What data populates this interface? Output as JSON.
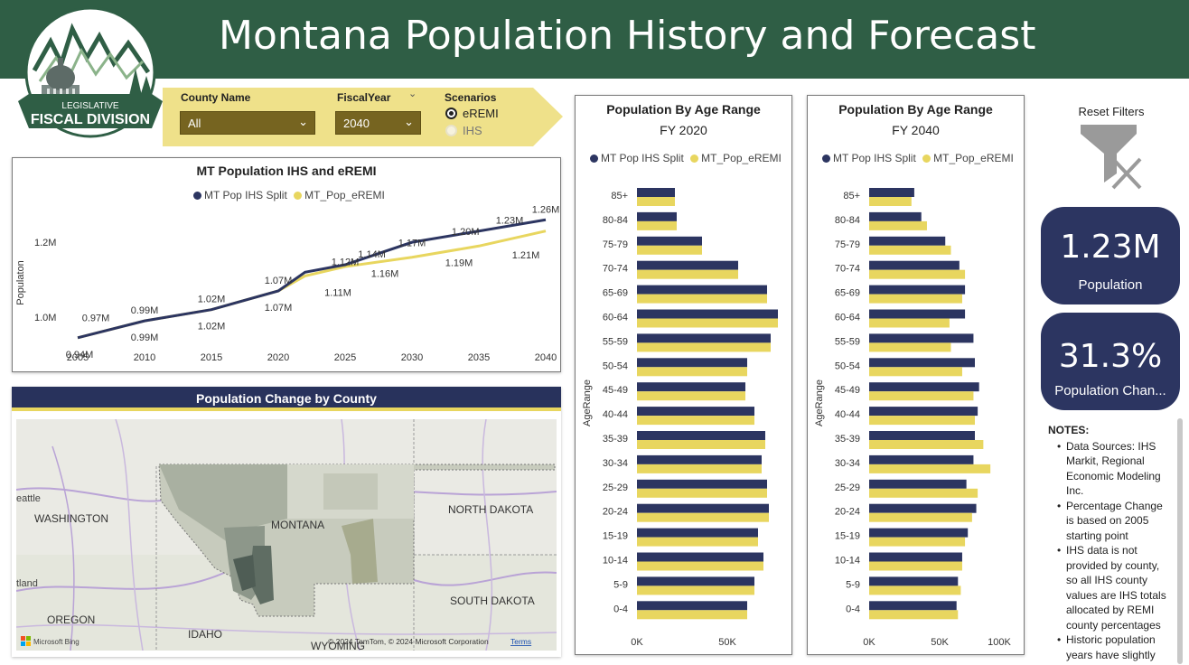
{
  "header": {
    "title": "Montana Population History and Forecast",
    "logo_top": "LEGISLATIVE",
    "logo_bottom": "FISCAL DIVISION"
  },
  "filters": {
    "county_label": "County Name",
    "county_value": "All",
    "year_label": "FiscalYear",
    "year_value": "2040",
    "scenarios_label": "Scenarios",
    "scenarios": [
      {
        "label": "eREMI",
        "selected": true
      },
      {
        "label": "IHS",
        "selected": false
      }
    ]
  },
  "colors": {
    "ihs": "#2c3561",
    "eremi": "#e8d65f",
    "header_bg": "#2f5e45",
    "kpi_bg": "#2c3561"
  },
  "line_chart": {
    "title": "MT Population IHS and eREMI",
    "legend": [
      "MT Pop IHS Split",
      "MT_Pop_eREMI"
    ],
    "ylabel": "Populaton",
    "y_ticks": [
      "1.2M",
      "1.0M"
    ],
    "x_ticks": [
      "2005",
      "2010",
      "2015",
      "2020",
      "2025",
      "2030",
      "2035",
      "2040"
    ],
    "above_labels": [
      "0.97M",
      "0.99M",
      "1.02M",
      "1.07M",
      "1.12M",
      "1.14M",
      "1.17M",
      "1.20M",
      "1.23M",
      "1.26M"
    ],
    "below_labels": [
      "0.94M",
      "0.99M",
      "1.02M",
      "1.07M",
      "1.11M",
      "1.16M",
      "1.19M",
      "1.21M"
    ]
  },
  "map": {
    "title": "Population Change by County",
    "labels": [
      "eattle",
      "WASHINGTON",
      "MONTANA",
      "NORTH DAKOTA",
      "SOUTH DAKOTA",
      "tland",
      "OREGON",
      "IDAHO",
      "WYOMING"
    ],
    "attribution": "© 2024 TomTom, © 2024 Microsoft Corporation",
    "terms": "Terms",
    "bing": "Microsoft Bing"
  },
  "age_charts": [
    {
      "title": "Population By Age Range",
      "subtitle": "FY 2020",
      "legend": [
        "MT Pop IHS Split",
        "MT_Pop_eREMI"
      ],
      "axis_label": "AgeRange",
      "x_ticks": [
        "0K",
        "50K"
      ]
    },
    {
      "title": "Population By Age Range",
      "subtitle": "FY 2040",
      "legend": [
        "MT Pop IHS Split",
        "MT_Pop_eREMI"
      ],
      "axis_label": "AgeRange",
      "x_ticks": [
        "0K",
        "50K",
        "100K"
      ]
    }
  ],
  "sidebar": {
    "reset_label": "Reset Filters",
    "kpis": [
      {
        "value": "1.23M",
        "label": "Population"
      },
      {
        "value": "31.3%",
        "label": "Population Chan..."
      }
    ],
    "notes_title": "NOTES:",
    "notes": [
      "Data Sources: IHS Markit, Regional Economic Modeling Inc.",
      "Percentage Change is based on 2005 starting point",
      "IHS data is not provided by county, so all IHS county values are IHS totals allocated by REMI county percentages",
      "Historic population years have slightly different values in IHS"
    ]
  },
  "chart_data": [
    {
      "type": "line",
      "title": "MT Population IHS and eREMI",
      "xlabel": "",
      "ylabel": "Populaton",
      "x": [
        2005,
        2010,
        2015,
        2020,
        2022,
        2025,
        2030,
        2035,
        2040
      ],
      "series": [
        {
          "name": "MT Pop IHS Split",
          "values": [
            0.945,
            0.99,
            1.02,
            1.07,
            1.12,
            1.14,
            1.2,
            1.23,
            1.26
          ]
        },
        {
          "name": "MT_Pop_eREMI",
          "values": [
            0.945,
            0.99,
            1.02,
            1.07,
            1.11,
            1.135,
            1.16,
            1.19,
            1.23
          ]
        }
      ],
      "xlim": [
        2005,
        2040
      ],
      "ylim": [
        0.93,
        1.28
      ],
      "legend": "top-center"
    },
    {
      "type": "bar",
      "title": "Population By Age Range",
      "subtitle": "FY 2020",
      "ylabel": "AgeRange",
      "categories": [
        "85+",
        "80-84",
        "75-79",
        "70-74",
        "65-69",
        "60-64",
        "55-59",
        "50-54",
        "45-49",
        "40-44",
        "35-39",
        "30-34",
        "25-29",
        "20-24",
        "15-19",
        "10-14",
        "5-9",
        "0-4"
      ],
      "series": [
        {
          "name": "MT Pop IHS Split",
          "values": [
            21,
            22,
            36,
            56,
            72,
            78,
            74,
            61,
            60,
            65,
            71,
            69,
            72,
            73,
            67,
            70,
            65,
            61
          ]
        },
        {
          "name": "MT_Pop_eREMI",
          "values": [
            21,
            22,
            36,
            56,
            72,
            78,
            74,
            61,
            60,
            65,
            71,
            69,
            72,
            73,
            67,
            70,
            65,
            61
          ]
        }
      ],
      "xlim": [
        0,
        80
      ],
      "legend": "top"
    },
    {
      "type": "bar",
      "title": "Population By Age Range",
      "subtitle": "FY 2040",
      "ylabel": "AgeRange",
      "categories": [
        "85+",
        "80-84",
        "75-79",
        "70-74",
        "65-69",
        "60-64",
        "55-59",
        "50-54",
        "45-49",
        "40-44",
        "35-39",
        "30-34",
        "25-29",
        "20-24",
        "15-19",
        "10-14",
        "5-9",
        "0-4"
      ],
      "series": [
        {
          "name": "MT Pop IHS Split",
          "values": [
            32,
            37,
            54,
            64,
            68,
            68,
            74,
            75,
            78,
            77,
            75,
            74,
            69,
            76,
            70,
            66,
            63,
            62
          ]
        },
        {
          "name": "MT_Pop_eREMI",
          "values": [
            30,
            41,
            58,
            68,
            66,
            57,
            58,
            66,
            74,
            75,
            81,
            86,
            77,
            73,
            68,
            66,
            65,
            63
          ]
        }
      ],
      "xlim": [
        0,
        100
      ],
      "legend": "top"
    }
  ]
}
